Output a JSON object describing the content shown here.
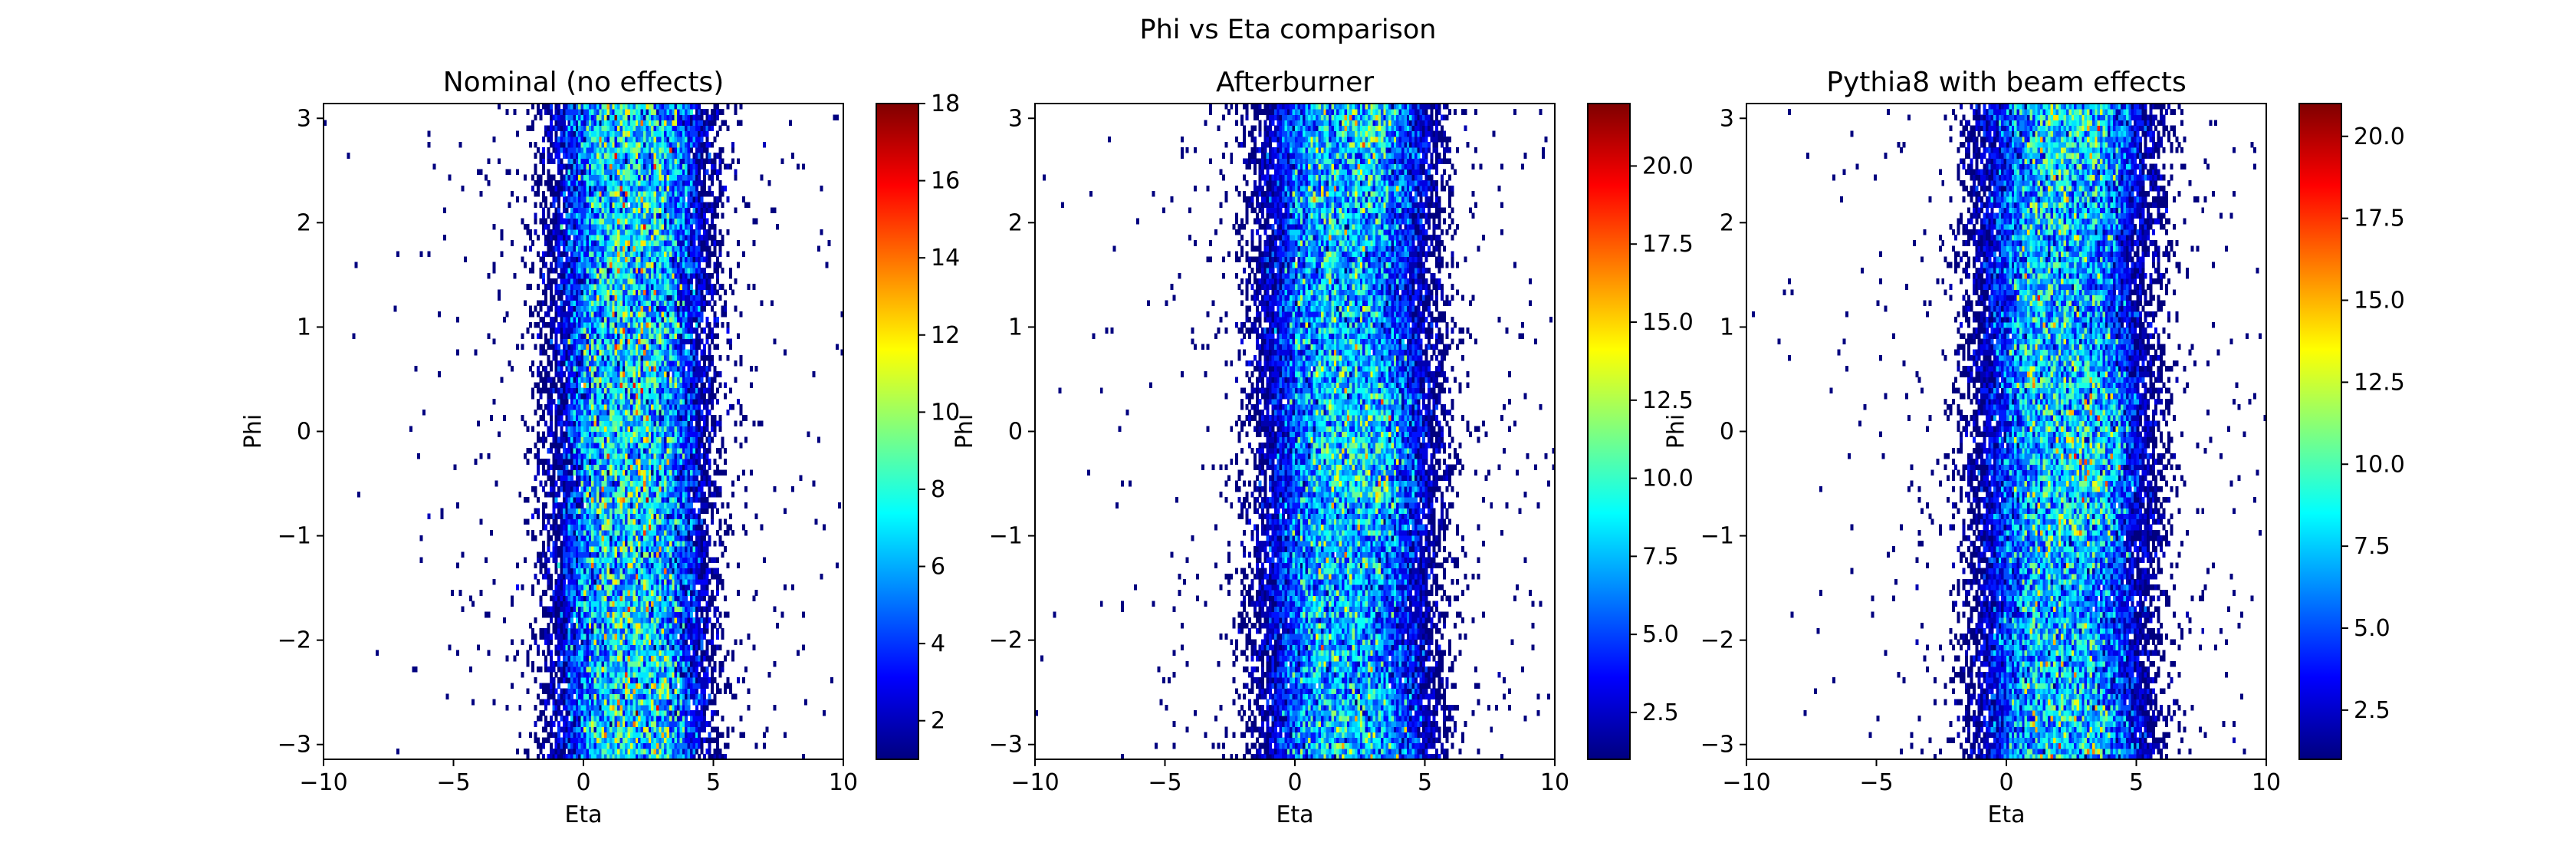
{
  "figure": {
    "suptitle": "Phi vs Eta comparison"
  },
  "colormap": [
    "#00007f",
    "#0000ff",
    "#007fff",
    "#00ffff",
    "#7fff7f",
    "#ffff00",
    "#ff7f00",
    "#ff0000",
    "#7f0000"
  ],
  "chart_data": [
    {
      "type": "heatmap",
      "title": "Nominal (no effects)",
      "xlabel": "Eta",
      "ylabel": "Phi",
      "xlim": [
        -10,
        10
      ],
      "ylim": [
        -3.14159,
        3.14159
      ],
      "xticks": [
        -10,
        -5,
        0,
        5,
        10
      ],
      "xtick_labels": [
        "−10",
        "−5",
        "0",
        "5",
        "10"
      ],
      "yticks": [
        -3,
        -2,
        -1,
        0,
        1,
        2,
        3
      ],
      "ytick_labels": [
        "−3",
        "−2",
        "−1",
        "0",
        "1",
        "2",
        "3"
      ],
      "colorbar": {
        "range": [
          1,
          18
        ],
        "ticks": [
          2,
          4,
          6,
          8,
          10,
          12,
          14,
          16,
          18
        ],
        "tick_labels": [
          "2",
          "4",
          "6",
          "8",
          "10",
          "12",
          "14",
          "16",
          "18"
        ]
      },
      "density": {
        "eta_center": 1.8,
        "eta_width": 2.0,
        "peak_count": 13,
        "phi_modulation": 0.0,
        "phi_peak": 0.0
      }
    },
    {
      "type": "heatmap",
      "title": "Afterburner",
      "xlabel": "Eta",
      "ylabel": "Phi",
      "xlim": [
        -10,
        10
      ],
      "ylim": [
        -3.14159,
        3.14159
      ],
      "xticks": [
        -10,
        -5,
        0,
        5,
        10
      ],
      "xtick_labels": [
        "−10",
        "−5",
        "0",
        "5",
        "10"
      ],
      "yticks": [
        -3,
        -2,
        -1,
        0,
        1,
        2,
        3
      ],
      "ytick_labels": [
        "−3",
        "−2",
        "−1",
        "0",
        "1",
        "2",
        "3"
      ],
      "colorbar": {
        "range": [
          1,
          22
        ],
        "ticks": [
          2.5,
          5.0,
          7.5,
          10.0,
          12.5,
          15.0,
          17.5,
          20.0
        ],
        "tick_labels": [
          "2.5",
          "5.0",
          "7.5",
          "10.0",
          "12.5",
          "15.0",
          "17.5",
          "20.0"
        ]
      },
      "density": {
        "eta_center": 2.0,
        "eta_width": 2.2,
        "peak_count": 14,
        "phi_modulation": 0.25,
        "phi_peak": 3.0
      }
    },
    {
      "type": "heatmap",
      "title": "Pythia8 with beam effects",
      "xlabel": "Eta",
      "ylabel": "Phi",
      "xlim": [
        -10,
        10
      ],
      "ylim": [
        -3.14159,
        3.14159
      ],
      "xticks": [
        -10,
        -5,
        0,
        5,
        10
      ],
      "xtick_labels": [
        "−10",
        "−5",
        "0",
        "5",
        "10"
      ],
      "yticks": [
        -3,
        -2,
        -1,
        0,
        1,
        2,
        3
      ],
      "ytick_labels": [
        "−3",
        "−2",
        "−1",
        "0",
        "1",
        "2",
        "3"
      ],
      "colorbar": {
        "range": [
          1,
          21
        ],
        "ticks": [
          2.5,
          5.0,
          7.5,
          10.0,
          12.5,
          15.0,
          17.5,
          20.0
        ],
        "tick_labels": [
          "2.5",
          "5.0",
          "7.5",
          "10.0",
          "12.5",
          "15.0",
          "17.5",
          "20.0"
        ]
      },
      "density": {
        "eta_center": 2.2,
        "eta_width": 2.2,
        "peak_count": 14,
        "phi_modulation": 0.25,
        "phi_peak": 3.0
      }
    }
  ]
}
